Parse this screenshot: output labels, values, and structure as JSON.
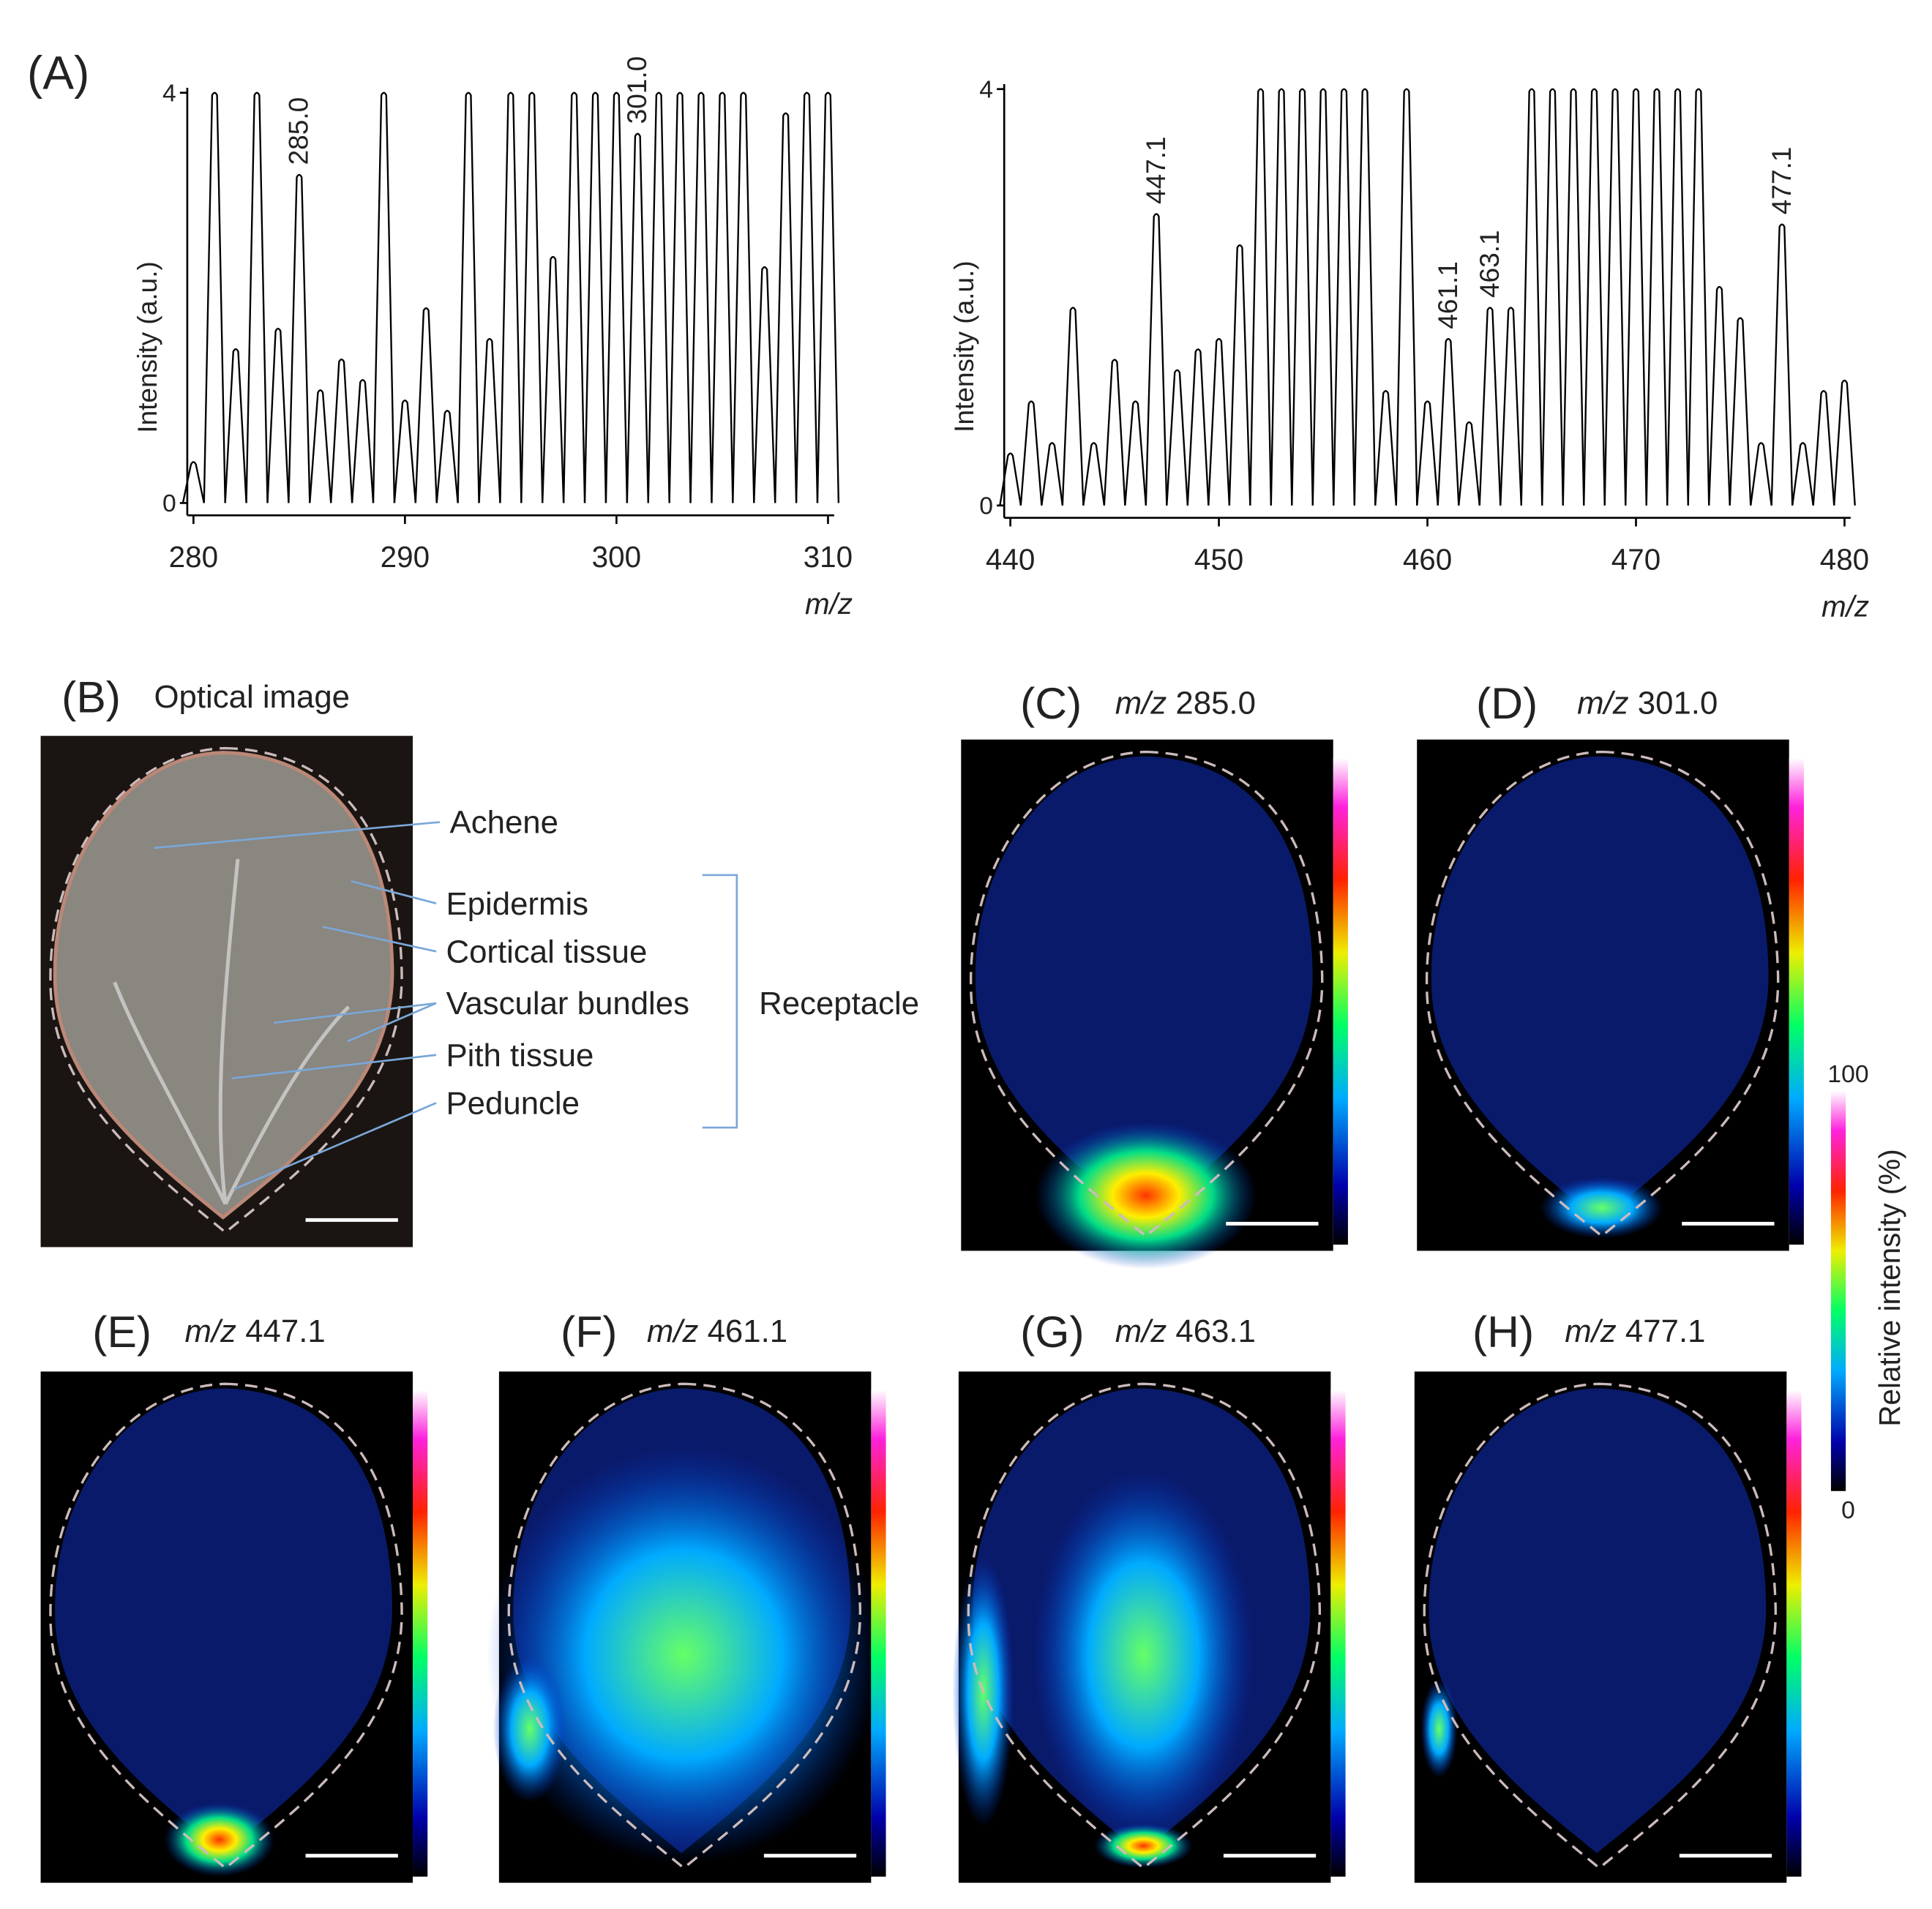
{
  "panel_label": "(A)",
  "chart_data": [
    {
      "type": "spectrum",
      "y_label": "Intensity (a.u.)",
      "x_label": "m/z",
      "x": [
        280,
        281,
        282,
        283,
        284,
        285,
        286,
        287,
        288,
        289,
        290,
        291,
        292,
        293,
        294,
        295,
        296,
        297,
        298,
        299,
        300,
        301,
        302,
        303,
        304,
        305,
        306,
        307,
        308,
        309,
        310
      ],
      "values": [
        0.4,
        4,
        1.5,
        4,
        1.7,
        3.2,
        1.1,
        1.4,
        1.2,
        4,
        1.0,
        1.9,
        0.9,
        4,
        1.6,
        4,
        4,
        2.4,
        4,
        4,
        4,
        3.6,
        4,
        4,
        4,
        4,
        4,
        2.3,
        3.8,
        4,
        4
      ],
      "xlim": [
        280,
        310
      ],
      "ylim": [
        0,
        4
      ],
      "xticks": [
        280,
        290,
        300,
        310
      ],
      "yticks": [
        0,
        4
      ],
      "annotations": [
        {
          "x": 285,
          "label": "285.0"
        },
        {
          "x": 301,
          "label": "301.0"
        }
      ]
    },
    {
      "type": "spectrum",
      "y_label": "Intensity (a.u.)",
      "x_label": "m/z",
      "x": [
        440,
        441,
        442,
        443,
        444,
        445,
        446,
        447,
        448,
        449,
        450,
        451,
        452,
        453,
        454,
        455,
        456,
        457,
        458,
        459,
        460,
        461,
        462,
        463,
        464,
        465,
        466,
        467,
        468,
        469,
        470,
        471,
        472,
        473,
        474,
        475,
        476,
        477,
        478,
        479,
        480
      ],
      "values": [
        0.5,
        1.0,
        0.6,
        1.9,
        0.6,
        1.4,
        1.0,
        2.8,
        1.3,
        1.5,
        1.6,
        2.5,
        4,
        4,
        4,
        4,
        4,
        4,
        1.1,
        4,
        1.0,
        1.6,
        0.8,
        1.9,
        1.9,
        4,
        4,
        4,
        4,
        4,
        4,
        4,
        4,
        4,
        2.1,
        1.8,
        0.6,
        2.7,
        0.6,
        1.1,
        1.2
      ],
      "xlim": [
        440,
        480
      ],
      "ylim": [
        0,
        4
      ],
      "xticks": [
        440,
        450,
        460,
        470,
        480
      ],
      "yticks": [
        0,
        4
      ],
      "annotations": [
        {
          "x": 447,
          "label": "447.1"
        },
        {
          "x": 461,
          "label": "461.1"
        },
        {
          "x": 463,
          "label": "463.1"
        },
        {
          "x": 477,
          "label": "477.1"
        }
      ]
    }
  ],
  "images": [
    {
      "label": "(B)",
      "title": "Optical image"
    },
    {
      "label": "(C)",
      "prefix": "m/z",
      "title": "285.0"
    },
    {
      "label": "(D)",
      "prefix": "m/z",
      "title": "301.0"
    },
    {
      "label": "(E)",
      "prefix": "m/z",
      "title": "447.1"
    },
    {
      "label": "(F)",
      "prefix": "m/z",
      "title": "461.1"
    },
    {
      "label": "(G)",
      "prefix": "m/z",
      "title": "463.1"
    },
    {
      "label": "(H)",
      "prefix": "m/z",
      "title": "477.1"
    }
  ],
  "tissue_labels": [
    "Achene",
    "Epidermis",
    "Cortical tissue",
    "Vascular bundles",
    "Pith tissue",
    "Peduncle"
  ],
  "group_label": "Receptacle",
  "colorbar": {
    "title": "Relative intensity (%)",
    "ticks": [
      100,
      0
    ]
  }
}
